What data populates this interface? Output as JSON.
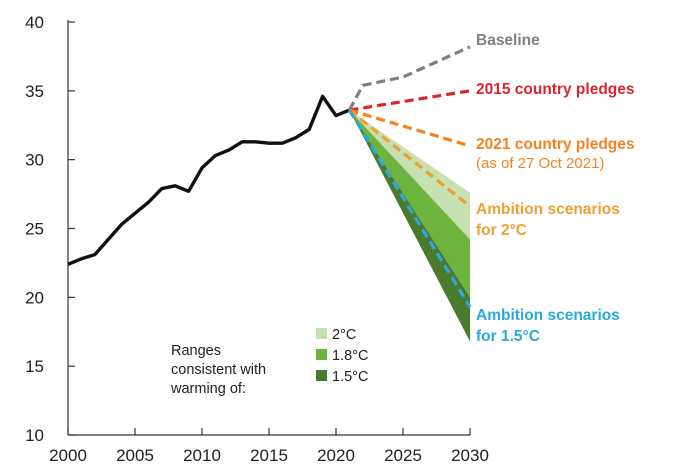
{
  "chart_data": {
    "type": "line",
    "title": "",
    "xlabel": "",
    "ylabel": "",
    "xlim": [
      2000,
      2030
    ],
    "ylim": [
      10,
      40
    ],
    "x_ticks": [
      2000,
      2005,
      2010,
      2015,
      2020,
      2025,
      2030
    ],
    "y_ticks": [
      10,
      15,
      20,
      25,
      30,
      35,
      40
    ],
    "grid": false,
    "historical": {
      "x": [
        2000,
        2001,
        2002,
        2003,
        2004,
        2005,
        2006,
        2007,
        2008,
        2009,
        2010,
        2011,
        2012,
        2013,
        2014,
        2015,
        2016,
        2017,
        2018,
        2019,
        2020,
        2021
      ],
      "y": [
        22.4,
        22.8,
        23.1,
        24.2,
        25.3,
        26.1,
        26.9,
        27.9,
        28.1,
        27.7,
        29.4,
        30.3,
        30.7,
        31.3,
        31.3,
        31.2,
        31.2,
        31.6,
        32.2,
        34.6,
        33.2,
        33.6
      ]
    },
    "projections": [
      {
        "key": "baseline",
        "label": "Baseline",
        "color": "#7f7f7f",
        "x": [
          2021,
          2022,
          2025,
          2030
        ],
        "y": [
          33.6,
          35.4,
          36.0,
          38.2
        ]
      },
      {
        "key": "pledges_2015",
        "label": "2015 country pledges",
        "color": "#d9262b",
        "x": [
          2021,
          2030
        ],
        "y": [
          33.6,
          35.0
        ]
      },
      {
        "key": "pledges_2021",
        "label": "2021 country pledges",
        "sublabel": "(as of 27 Oct 2021)",
        "color": "#f5821f",
        "x": [
          2021,
          2030
        ],
        "y": [
          33.6,
          31.0
        ]
      },
      {
        "key": "ambition_2c",
        "label": "Ambition scenarios",
        "label2": "for 2°C",
        "color": "#f0a030",
        "x": [
          2021,
          2030
        ],
        "y": [
          33.6,
          26.6
        ]
      },
      {
        "key": "ambition_1_5c",
        "label": "Ambition scenarios",
        "label2": "for 1.5°C",
        "color": "#29a9e0",
        "x": [
          2021,
          2030
        ],
        "y": [
          33.6,
          19.3
        ]
      }
    ],
    "ranges": [
      {
        "label": "2°C",
        "color": "#c7e0b0",
        "start": [
          2021,
          33.6
        ],
        "end_low": 24.2,
        "end_high": 27.6
      },
      {
        "label": "1.8°C",
        "color": "#6cb33f",
        "start": [
          2021,
          33.6
        ],
        "end_low": 20.0,
        "end_high": 24.2
      },
      {
        "label": "1.5°C",
        "color": "#4a7a2e",
        "start": [
          2021,
          33.6
        ],
        "end_low": 16.8,
        "end_high": 20.0
      }
    ],
    "legend": {
      "title_lines": [
        "Ranges",
        "consistent with",
        "warming of:"
      ],
      "placement": "bottom-center"
    }
  }
}
